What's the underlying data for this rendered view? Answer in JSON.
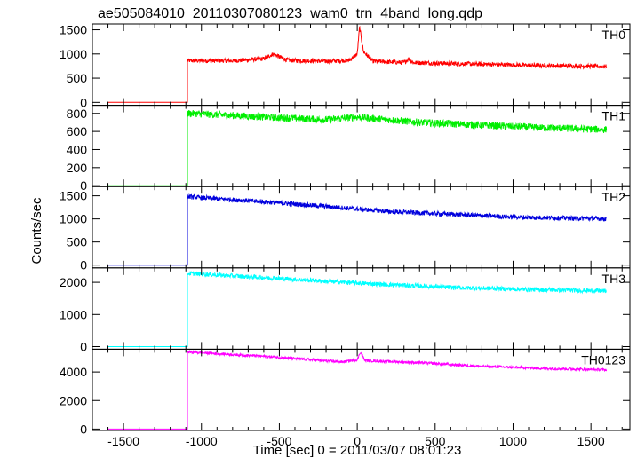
{
  "chart_data": {
    "type": "line",
    "title": "ae505084010_20110307080123_wam0_trn_4band_long.qdp",
    "xlabel": "Time [sec] 0 = 2011/03/07 08:01:23",
    "ylabel": "Counts/sec",
    "xlim": [
      -1700,
      1750
    ],
    "x_ticks": [
      -1500,
      -1000,
      -500,
      0,
      500,
      1000,
      1500
    ],
    "panels": [
      {
        "name": "TH0",
        "color": "#ff0000",
        "ylim": [
          -60,
          1620
        ],
        "y_ticks": [
          0,
          500,
          1000,
          1500
        ],
        "baseline_x": [
          -1600,
          -1090
        ],
        "baseline_value": 0,
        "points": [
          [
            -1090,
            860
          ],
          [
            -800,
            860
          ],
          [
            -600,
            900
          ],
          [
            -540,
            1000
          ],
          [
            -450,
            870
          ],
          [
            -200,
            850
          ],
          [
            -50,
            870
          ],
          [
            0,
            1000
          ],
          [
            15,
            1560
          ],
          [
            40,
            1050
          ],
          [
            100,
            850
          ],
          [
            300,
            820
          ],
          [
            330,
            900
          ],
          [
            360,
            820
          ],
          [
            800,
            790
          ],
          [
            1200,
            760
          ],
          [
            1600,
            740
          ]
        ],
        "noise": 45
      },
      {
        "name": "TH1",
        "color": "#00ee00",
        "ylim": [
          -10,
          890
        ],
        "y_ticks": [
          0,
          200,
          400,
          600,
          800
        ],
        "baseline_x": [
          -1600,
          -1090
        ],
        "baseline_value": 0,
        "points": [
          [
            -1090,
            800
          ],
          [
            -600,
            760
          ],
          [
            -200,
            730
          ],
          [
            0,
            760
          ],
          [
            400,
            700
          ],
          [
            800,
            670
          ],
          [
            1200,
            640
          ],
          [
            1600,
            620
          ]
        ],
        "noise": 40
      },
      {
        "name": "TH2",
        "color": "#0000dd",
        "ylim": [
          -60,
          1700
        ],
        "y_ticks": [
          0,
          500,
          1000,
          1500
        ],
        "baseline_x": [
          -1600,
          -1090
        ],
        "baseline_value": 0,
        "points": [
          [
            -1090,
            1480
          ],
          [
            -600,
            1370
          ],
          [
            -200,
            1270
          ],
          [
            200,
            1160
          ],
          [
            600,
            1100
          ],
          [
            1000,
            1040
          ],
          [
            1600,
            1000
          ]
        ],
        "noise": 50
      },
      {
        "name": "TH3",
        "color": "#00ffff",
        "ylim": [
          -80,
          2450
        ],
        "y_ticks": [
          0,
          1000,
          2000
        ],
        "baseline_x": [
          -1600,
          -1090
        ],
        "baseline_value": 0,
        "points": [
          [
            -1090,
            2280
          ],
          [
            -600,
            2150
          ],
          [
            -200,
            2030
          ],
          [
            200,
            1930
          ],
          [
            600,
            1840
          ],
          [
            1000,
            1790
          ],
          [
            1600,
            1730
          ]
        ],
        "noise": 70
      },
      {
        "name": "TH0123",
        "color": "#ff00ff",
        "ylim": [
          -100,
          5600
        ],
        "y_ticks": [
          0,
          2000,
          4000
        ],
        "baseline_x": [
          -1600,
          -1090
        ],
        "baseline_value": 0,
        "points": [
          [
            -1090,
            5400
          ],
          [
            -600,
            5100
          ],
          [
            -100,
            4700
          ],
          [
            0,
            4850
          ],
          [
            20,
            5400
          ],
          [
            50,
            4800
          ],
          [
            400,
            4650
          ],
          [
            800,
            4400
          ],
          [
            1200,
            4250
          ],
          [
            1600,
            4150
          ]
        ],
        "noise": 90
      }
    ]
  }
}
